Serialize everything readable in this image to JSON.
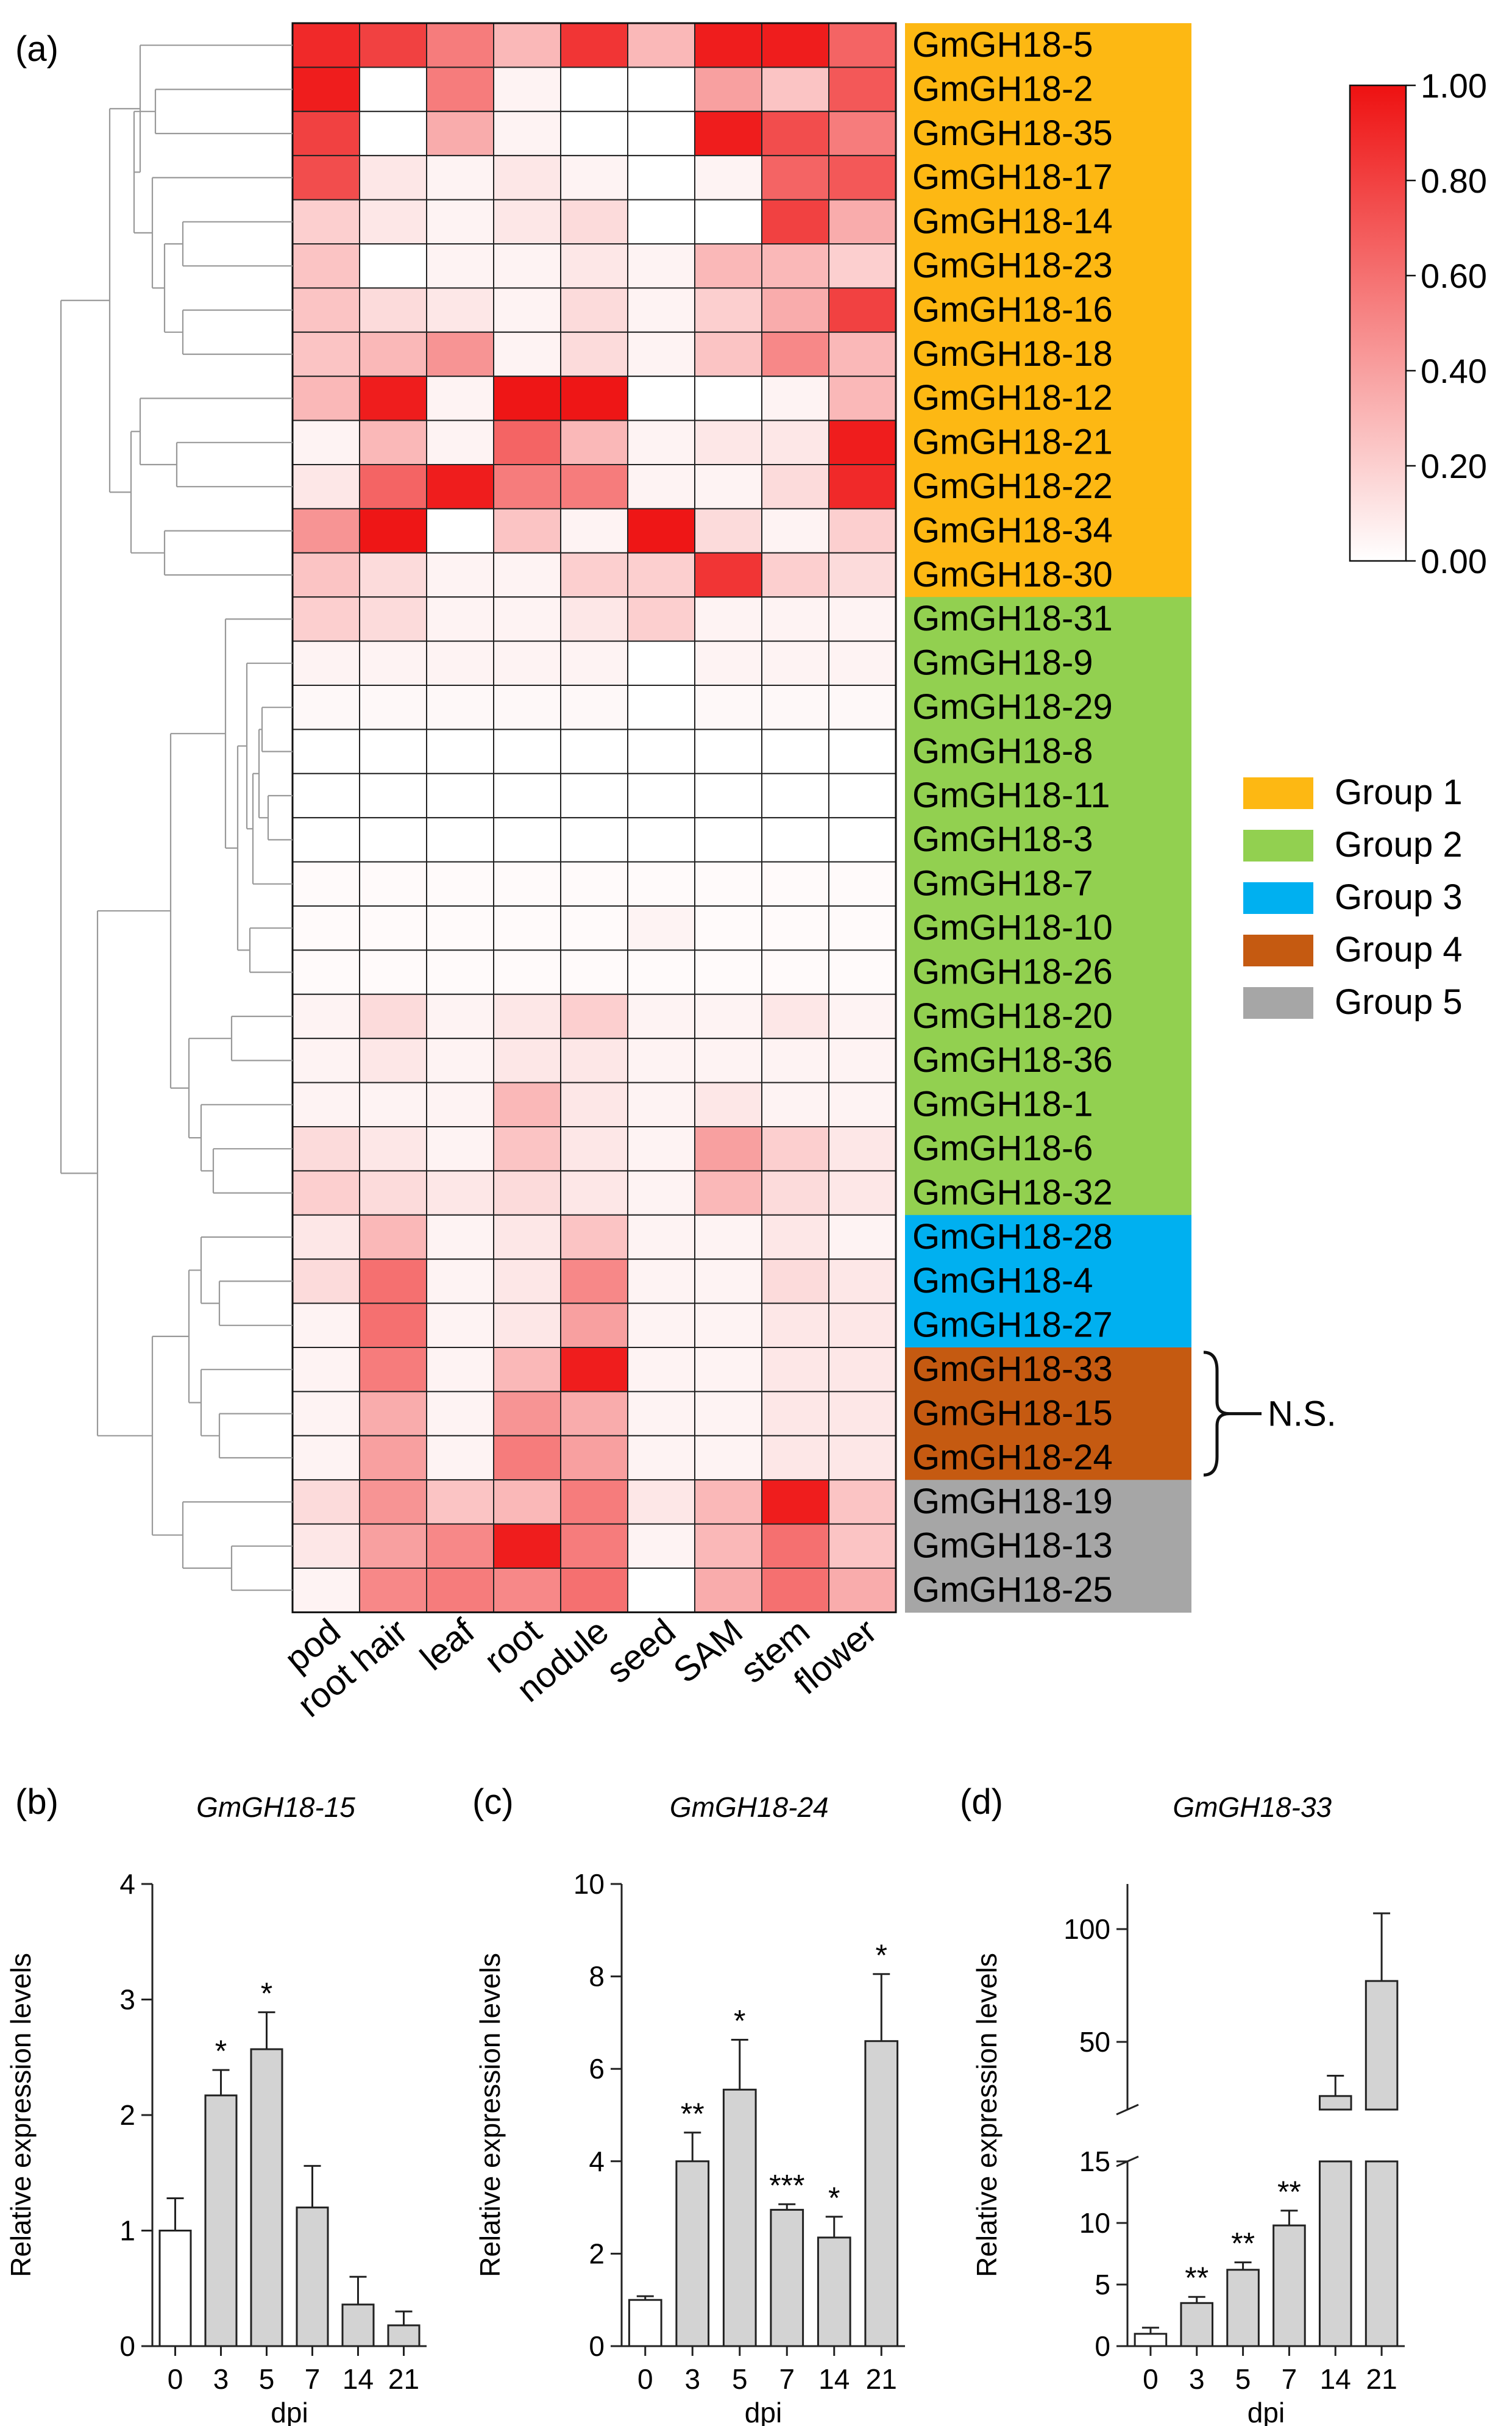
{
  "chart_data": [
    {
      "panel": "(a)",
      "type": "heatmap",
      "columns": [
        "pod",
        "root hair",
        "leaf",
        "root",
        "nodule",
        "seed",
        "SAM",
        "stem",
        "flower"
      ],
      "rows": [
        "GmGH18-5",
        "GmGH18-2",
        "GmGH18-35",
        "GmGH18-17",
        "GmGH18-14",
        "GmGH18-23",
        "GmGH18-16",
        "GmGH18-18",
        "GmGH18-12",
        "GmGH18-21",
        "GmGH18-22",
        "GmGH18-34",
        "GmGH18-30",
        "GmGH18-31",
        "GmGH18-9",
        "GmGH18-29",
        "GmGH18-8",
        "GmGH18-11",
        "GmGH18-3",
        "GmGH18-7",
        "GmGH18-10",
        "GmGH18-26",
        "GmGH18-20",
        "GmGH18-36",
        "GmGH18-1",
        "GmGH18-6",
        "GmGH18-32",
        "GmGH18-28",
        "GmGH18-4",
        "GmGH18-27",
        "GmGH18-33",
        "GmGH18-15",
        "GmGH18-24",
        "GmGH18-19",
        "GmGH18-13",
        "GmGH18-25"
      ],
      "row_groups": [
        1,
        1,
        1,
        1,
        1,
        1,
        1,
        1,
        1,
        1,
        1,
        1,
        1,
        2,
        2,
        2,
        2,
        2,
        2,
        2,
        2,
        2,
        2,
        2,
        2,
        2,
        2,
        3,
        3,
        3,
        4,
        4,
        4,
        5,
        5,
        5
      ],
      "values": [
        [
          0.9,
          0.8,
          0.55,
          0.3,
          0.85,
          0.3,
          0.95,
          0.95,
          0.65
        ],
        [
          0.95,
          0.0,
          0.55,
          0.05,
          0.0,
          0.0,
          0.4,
          0.25,
          0.7
        ],
        [
          0.8,
          0.0,
          0.35,
          0.05,
          0.0,
          0.0,
          0.95,
          0.75,
          0.55
        ],
        [
          0.75,
          0.1,
          0.05,
          0.1,
          0.05,
          0.0,
          0.05,
          0.65,
          0.7
        ],
        [
          0.2,
          0.1,
          0.05,
          0.1,
          0.15,
          0.0,
          0.0,
          0.8,
          0.35
        ],
        [
          0.25,
          0.0,
          0.05,
          0.05,
          0.1,
          0.05,
          0.3,
          0.3,
          0.2
        ],
        [
          0.25,
          0.15,
          0.1,
          0.05,
          0.15,
          0.05,
          0.2,
          0.35,
          0.8
        ],
        [
          0.25,
          0.3,
          0.45,
          0.05,
          0.15,
          0.05,
          0.25,
          0.5,
          0.3
        ],
        [
          0.3,
          0.95,
          0.05,
          0.98,
          0.98,
          0.0,
          0.0,
          0.05,
          0.3
        ],
        [
          0.05,
          0.3,
          0.05,
          0.65,
          0.3,
          0.05,
          0.1,
          0.1,
          0.95
        ],
        [
          0.1,
          0.65,
          0.95,
          0.55,
          0.55,
          0.05,
          0.05,
          0.15,
          0.9
        ],
        [
          0.45,
          0.98,
          0.0,
          0.25,
          0.05,
          0.98,
          0.15,
          0.05,
          0.2
        ],
        [
          0.25,
          0.15,
          0.05,
          0.05,
          0.2,
          0.2,
          0.85,
          0.2,
          0.15
        ],
        [
          0.2,
          0.15,
          0.05,
          0.05,
          0.1,
          0.2,
          0.05,
          0.05,
          0.05
        ],
        [
          0.05,
          0.05,
          0.05,
          0.05,
          0.05,
          0.0,
          0.05,
          0.05,
          0.05
        ],
        [
          0.03,
          0.03,
          0.03,
          0.03,
          0.03,
          0.0,
          0.03,
          0.03,
          0.03
        ],
        [
          0.0,
          0.0,
          0.0,
          0.0,
          0.0,
          0.0,
          0.0,
          0.0,
          0.0
        ],
        [
          0.0,
          0.0,
          0.0,
          0.0,
          0.0,
          0.0,
          0.0,
          0.0,
          0.0
        ],
        [
          0.0,
          0.0,
          0.0,
          0.0,
          0.0,
          0.0,
          0.0,
          0.0,
          0.0
        ],
        [
          0.02,
          0.02,
          0.02,
          0.02,
          0.02,
          0.02,
          0.02,
          0.02,
          0.02
        ],
        [
          0.02,
          0.02,
          0.02,
          0.02,
          0.02,
          0.05,
          0.02,
          0.02,
          0.02
        ],
        [
          0.02,
          0.02,
          0.02,
          0.02,
          0.02,
          0.02,
          0.02,
          0.02,
          0.02
        ],
        [
          0.05,
          0.15,
          0.05,
          0.1,
          0.2,
          0.05,
          0.05,
          0.1,
          0.05
        ],
        [
          0.05,
          0.1,
          0.05,
          0.1,
          0.1,
          0.05,
          0.05,
          0.05,
          0.05
        ],
        [
          0.05,
          0.05,
          0.05,
          0.3,
          0.1,
          0.05,
          0.1,
          0.05,
          0.05
        ],
        [
          0.15,
          0.1,
          0.05,
          0.25,
          0.1,
          0.05,
          0.4,
          0.2,
          0.1
        ],
        [
          0.2,
          0.15,
          0.1,
          0.15,
          0.1,
          0.05,
          0.3,
          0.15,
          0.1
        ],
        [
          0.1,
          0.3,
          0.05,
          0.1,
          0.25,
          0.05,
          0.05,
          0.1,
          0.05
        ],
        [
          0.15,
          0.6,
          0.05,
          0.1,
          0.5,
          0.05,
          0.05,
          0.15,
          0.1
        ],
        [
          0.05,
          0.6,
          0.05,
          0.1,
          0.4,
          0.05,
          0.05,
          0.1,
          0.1
        ],
        [
          0.05,
          0.55,
          0.05,
          0.3,
          0.95,
          0.05,
          0.05,
          0.1,
          0.1
        ],
        [
          0.05,
          0.35,
          0.05,
          0.45,
          0.35,
          0.05,
          0.05,
          0.1,
          0.1
        ],
        [
          0.05,
          0.4,
          0.05,
          0.55,
          0.4,
          0.05,
          0.05,
          0.1,
          0.1
        ],
        [
          0.15,
          0.45,
          0.25,
          0.3,
          0.55,
          0.1,
          0.3,
          0.95,
          0.25
        ],
        [
          0.1,
          0.4,
          0.5,
          0.95,
          0.55,
          0.05,
          0.3,
          0.6,
          0.25
        ],
        [
          0.05,
          0.5,
          0.55,
          0.5,
          0.6,
          0.0,
          0.35,
          0.6,
          0.35
        ]
      ],
      "colorbar": {
        "min": 0.0,
        "max": 1.0,
        "tick_labels": [
          "1.00",
          "0.80",
          "0.60",
          "0.40",
          "0.20",
          "0.00"
        ],
        "low_color": "#ffffff",
        "high_color": "#ee1111"
      },
      "legend": [
        {
          "label": "Group 1",
          "color": "#fdb813"
        },
        {
          "label": "Group 2",
          "color": "#92d050"
        },
        {
          "label": "Group 3",
          "color": "#00b0f0"
        },
        {
          "label": "Group 4",
          "color": "#c55a11"
        },
        {
          "label": "Group 5",
          "color": "#a6a6a6"
        }
      ],
      "annotation": "N.S."
    },
    {
      "panel": "(b)",
      "type": "bar",
      "title": "GmGH18-15",
      "categories": [
        "0",
        "3",
        "5",
        "7",
        "14",
        "21"
      ],
      "values": [
        1.0,
        2.17,
        2.57,
        1.2,
        0.36,
        0.18
      ],
      "errors": [
        0.28,
        0.22,
        0.32,
        0.36,
        0.24,
        0.12
      ],
      "significance": [
        "",
        "*",
        "*",
        "",
        "",
        ""
      ],
      "xlabel": "dpi",
      "ylabel": "Relative expression levels",
      "ylim": [
        0,
        4
      ],
      "yticks": [
        0,
        1,
        2,
        3,
        4
      ]
    },
    {
      "panel": "(c)",
      "type": "bar",
      "title": "GmGH18-24",
      "categories": [
        "0",
        "3",
        "5",
        "7",
        "14",
        "21"
      ],
      "values": [
        1.0,
        4.0,
        5.55,
        2.95,
        2.35,
        6.6
      ],
      "errors": [
        0.08,
        0.62,
        1.08,
        0.12,
        0.45,
        1.45
      ],
      "significance": [
        "",
        "**",
        "*",
        "***",
        "*",
        "*"
      ],
      "xlabel": "dpi",
      "ylabel": "Relative expression levels",
      "ylim": [
        0,
        10
      ],
      "yticks": [
        0,
        2,
        4,
        6,
        8,
        10
      ]
    },
    {
      "panel": "(d)",
      "type": "bar",
      "title": "GmGH18-33",
      "categories": [
        "0",
        "3",
        "5",
        "7",
        "14",
        "21"
      ],
      "values": [
        1.0,
        3.5,
        6.2,
        9.8,
        26.0,
        77.0
      ],
      "errors": [
        0.5,
        0.5,
        0.6,
        1.2,
        9.0,
        30.0
      ],
      "significance": [
        "",
        "**",
        "**",
        "**",
        "",
        ""
      ],
      "xlabel": "dpi",
      "ylabel": "Relative expression levels",
      "axis_break": {
        "lower_range": [
          0,
          15
        ],
        "upper_range": [
          20,
          120
        ]
      },
      "yticks_lower": [
        0,
        5,
        10,
        15
      ],
      "yticks_upper": [
        50,
        100
      ]
    }
  ]
}
